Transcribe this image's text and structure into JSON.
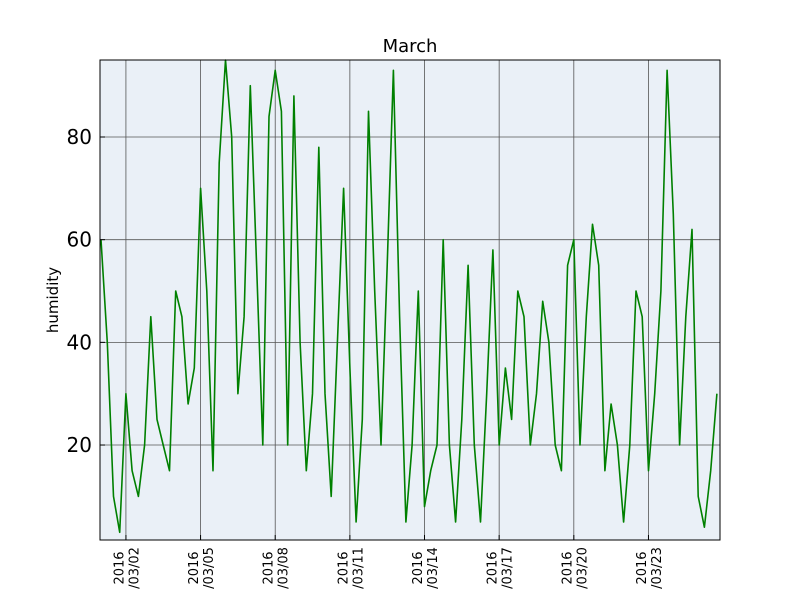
{
  "chart_data": {
    "type": "line",
    "title": "March",
    "y_label": "humidity",
    "color": "#008000",
    "grid": true,
    "xlim": [
      "2016-02-29 23:00",
      "2016-03-25 21:00"
    ],
    "ylim": [
      1.5,
      95
    ],
    "yticks": [
      20,
      40,
      60,
      80
    ],
    "xticks": [
      {
        "value": "2016-03-02 00:00",
        "label": "2016\n/03/02"
      },
      {
        "value": "2016-03-05 00:00",
        "label": "2016\n/03/05"
      },
      {
        "value": "2016-03-08 00:00",
        "label": "2016\n/03/08"
      },
      {
        "value": "2016-03-11 00:00",
        "label": "2016\n/03/11"
      },
      {
        "value": "2016-03-14 00:00",
        "label": "2016\n/03/14"
      },
      {
        "value": "2016-03-17 00:00",
        "label": "2016\n/03/17"
      },
      {
        "value": "2016-03-20 00:00",
        "label": "2016\n/03/20"
      },
      {
        "value": "2016-03-23 00:00",
        "label": "2016\n/03/23"
      }
    ],
    "x": [
      "2016-03-01 00:00",
      "2016-03-01 06:00",
      "2016-03-01 12:00",
      "2016-03-01 18:00",
      "2016-03-02 00:00",
      "2016-03-02 06:00",
      "2016-03-02 12:00",
      "2016-03-02 18:00",
      "2016-03-03 00:00",
      "2016-03-03 06:00",
      "2016-03-03 12:00",
      "2016-03-03 18:00",
      "2016-03-04 00:00",
      "2016-03-04 06:00",
      "2016-03-04 12:00",
      "2016-03-04 18:00",
      "2016-03-05 00:00",
      "2016-03-05 06:00",
      "2016-03-05 12:00",
      "2016-03-05 18:00",
      "2016-03-06 00:00",
      "2016-03-06 06:00",
      "2016-03-06 12:00",
      "2016-03-06 18:00",
      "2016-03-07 00:00",
      "2016-03-07 06:00",
      "2016-03-07 12:00",
      "2016-03-07 18:00",
      "2016-03-08 00:00",
      "2016-03-08 06:00",
      "2016-03-08 12:00",
      "2016-03-08 18:00",
      "2016-03-09 00:00",
      "2016-03-09 06:00",
      "2016-03-09 12:00",
      "2016-03-09 18:00",
      "2016-03-10 00:00",
      "2016-03-10 06:00",
      "2016-03-10 12:00",
      "2016-03-10 18:00",
      "2016-03-11 00:00",
      "2016-03-11 06:00",
      "2016-03-11 12:00",
      "2016-03-11 18:00",
      "2016-03-12 00:00",
      "2016-03-12 06:00",
      "2016-03-12 12:00",
      "2016-03-12 18:00",
      "2016-03-13 00:00",
      "2016-03-13 06:00",
      "2016-03-13 12:00",
      "2016-03-13 18:00",
      "2016-03-14 00:00",
      "2016-03-14 06:00",
      "2016-03-14 12:00",
      "2016-03-14 18:00",
      "2016-03-15 00:00",
      "2016-03-15 06:00",
      "2016-03-15 12:00",
      "2016-03-15 18:00",
      "2016-03-16 00:00",
      "2016-03-16 06:00",
      "2016-03-16 12:00",
      "2016-03-16 18:00",
      "2016-03-17 00:00",
      "2016-03-17 06:00",
      "2016-03-17 12:00",
      "2016-03-17 18:00",
      "2016-03-18 00:00",
      "2016-03-18 06:00",
      "2016-03-18 12:00",
      "2016-03-18 18:00",
      "2016-03-19 00:00",
      "2016-03-19 06:00",
      "2016-03-19 12:00",
      "2016-03-19 18:00",
      "2016-03-20 00:00",
      "2016-03-20 06:00",
      "2016-03-20 12:00",
      "2016-03-20 18:00",
      "2016-03-21 00:00",
      "2016-03-21 06:00",
      "2016-03-21 12:00",
      "2016-03-21 18:00",
      "2016-03-22 00:00",
      "2016-03-22 06:00",
      "2016-03-22 12:00",
      "2016-03-22 18:00",
      "2016-03-23 00:00",
      "2016-03-23 06:00",
      "2016-03-23 12:00",
      "2016-03-23 18:00",
      "2016-03-24 00:00",
      "2016-03-24 06:00",
      "2016-03-24 12:00",
      "2016-03-24 18:00",
      "2016-03-25 00:00",
      "2016-03-25 06:00",
      "2016-03-25 12:00",
      "2016-03-25 18:00"
    ],
    "values": [
      60,
      40,
      10,
      3,
      30,
      15,
      10,
      20,
      45,
      25,
      20,
      15,
      50,
      45,
      28,
      35,
      70,
      50,
      15,
      75,
      95,
      80,
      30,
      45,
      90,
      55,
      20,
      84,
      93,
      85,
      20,
      88,
      40,
      15,
      30,
      78,
      30,
      10,
      40,
      70,
      35,
      5,
      25,
      85,
      50,
      20,
      55,
      93,
      45,
      5,
      20,
      50,
      8,
      15,
      20,
      60,
      20,
      5,
      25,
      55,
      20,
      5,
      30,
      58,
      20,
      35,
      25,
      50,
      45,
      20,
      30,
      48,
      40,
      20,
      15,
      55,
      60,
      20,
      45,
      63,
      55,
      15,
      28,
      20,
      5,
      20,
      50,
      45,
      15,
      30,
      50,
      93,
      65,
      20,
      45,
      62,
      10,
      4,
      15,
      30
    ]
  }
}
